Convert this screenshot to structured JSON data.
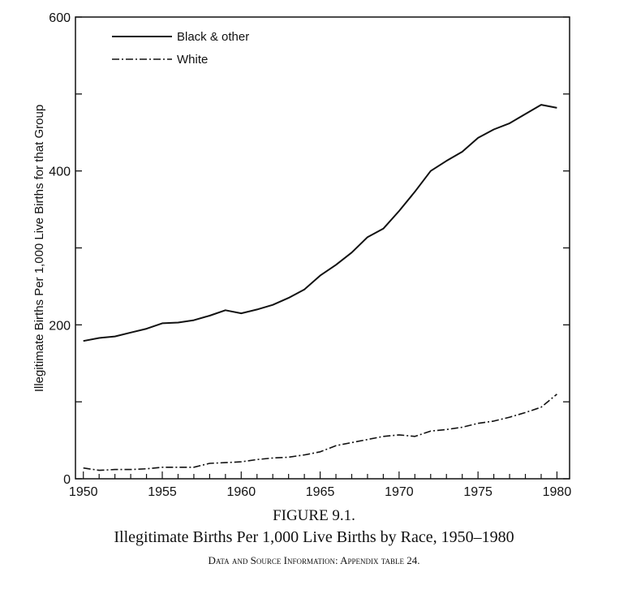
{
  "figure": {
    "label": "FIGURE 9.1.",
    "title": "Illegitimate Births Per 1,000 Live Births by Race, 1950–1980",
    "source": "Data and Source Information: Appendix table 24."
  },
  "chart_data": {
    "type": "line",
    "title": "Illegitimate Births Per 1,000 Live Births by Race, 1950–1980",
    "xlabel": "",
    "ylabel": "Illegitimate Births Per 1,000 Live Births for that Group",
    "xlim": [
      1949.5,
      1980.8
    ],
    "ylim": [
      0,
      600
    ],
    "grid": false,
    "legend": "top-left",
    "x": [
      1950,
      1951,
      1952,
      1953,
      1954,
      1955,
      1956,
      1957,
      1958,
      1959,
      1960,
      1961,
      1962,
      1963,
      1964,
      1965,
      1966,
      1967,
      1968,
      1969,
      1970,
      1971,
      1972,
      1973,
      1974,
      1975,
      1976,
      1977,
      1978,
      1979,
      1980
    ],
    "x_ticks": [
      "1950",
      "1955",
      "1960",
      "1965",
      "1970",
      "1975",
      "1980"
    ],
    "y_ticks": [
      "0",
      "200",
      "400",
      "600"
    ],
    "series": [
      {
        "name": "Black & other",
        "style": "solid",
        "values": [
          179,
          183,
          185,
          190,
          195,
          202,
          203,
          206,
          212,
          219,
          215,
          220,
          226,
          235,
          246,
          264,
          278,
          294,
          314,
          325,
          348,
          373,
          400,
          413,
          425,
          443,
          454,
          462,
          474,
          486,
          482
        ]
      },
      {
        "name": "White",
        "style": "dash-dot",
        "values": [
          14,
          11,
          12,
          12,
          13,
          15,
          15,
          15,
          20,
          21,
          22,
          25,
          27,
          28,
          31,
          35,
          43,
          47,
          51,
          55,
          57,
          55,
          62,
          64,
          67,
          72,
          75,
          80,
          86,
          93,
          110
        ]
      }
    ]
  }
}
